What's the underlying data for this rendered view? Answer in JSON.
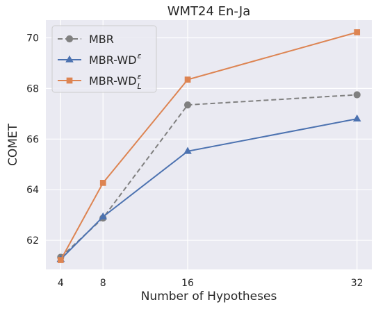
{
  "chart_data": {
    "type": "line",
    "title": "WMT24 En-Ja",
    "xlabel": "Number of Hypotheses",
    "ylabel": "COMET",
    "x": [
      4,
      8,
      16,
      32
    ],
    "x_ticks": [
      "4",
      "8",
      "16",
      "32"
    ],
    "y_ticks": [
      "62",
      "64",
      "66",
      "68",
      "70"
    ],
    "xlim": [
      2.6,
      33.4
    ],
    "ylim": [
      60.85,
      70.7
    ],
    "grid": true,
    "legend_position": "top-left",
    "background": "#eaeaf2",
    "series": [
      {
        "name": "MBR",
        "legend_main": "MBR",
        "legend_sup": "",
        "legend_sub": "",
        "values": [
          61.33,
          62.88,
          67.35,
          67.75
        ],
        "color": "#808080",
        "marker": "circle",
        "dashed": true
      },
      {
        "name": "MBR-WD^ε",
        "legend_main": "MBR-WD",
        "legend_sup": "ε",
        "legend_sub": "",
        "values": [
          61.25,
          62.93,
          65.52,
          66.8
        ],
        "color": "#4c72b0",
        "marker": "triangle",
        "dashed": false
      },
      {
        "name": "MBR-WD^ε_L",
        "legend_main": "MBR-WD",
        "legend_sup": "ε",
        "legend_sub": "L",
        "values": [
          61.22,
          64.27,
          68.35,
          70.22
        ],
        "color": "#dd8452",
        "marker": "square",
        "dashed": false
      }
    ]
  }
}
